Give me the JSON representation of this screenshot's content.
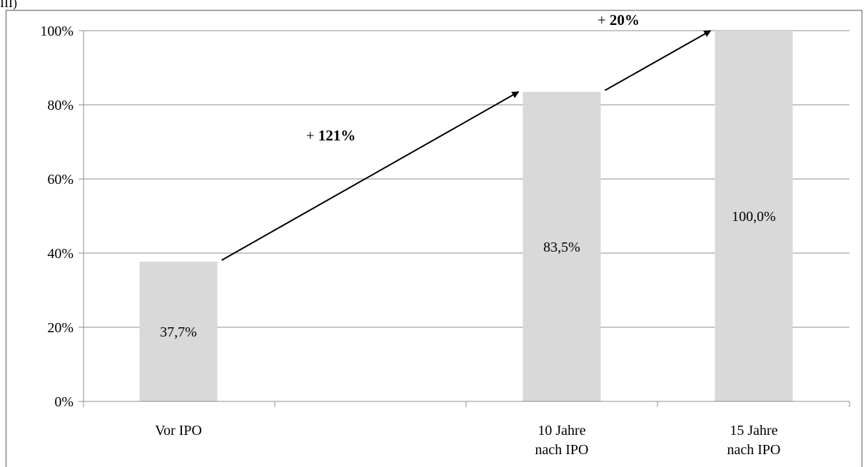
{
  "corner_text": "(III)",
  "chart_data": {
    "type": "bar",
    "categories": [
      [
        "Vor IPO"
      ],
      [
        "10 Jahre",
        "nach IPO"
      ],
      [
        "15 Jahre",
        "nach IPO"
      ]
    ],
    "values": [
      37.7,
      83.5,
      100.0
    ],
    "data_labels": [
      "37,7%",
      "83,5%",
      "100,0%"
    ],
    "ylim": [
      0,
      100
    ],
    "yticks": [
      0,
      20,
      40,
      60,
      80,
      100
    ],
    "ytick_labels": [
      "0%",
      "20%",
      "40%",
      "60%",
      "80%",
      "100%"
    ],
    "grid": true,
    "legend": "none",
    "bar_color": "#d9d9d9",
    "annotations": [
      {
        "from": 0,
        "to": 1,
        "sign": "+ ",
        "value": "121%"
      },
      {
        "from": 1,
        "to": 2,
        "sign": "+ ",
        "value": "20%"
      }
    ]
  }
}
